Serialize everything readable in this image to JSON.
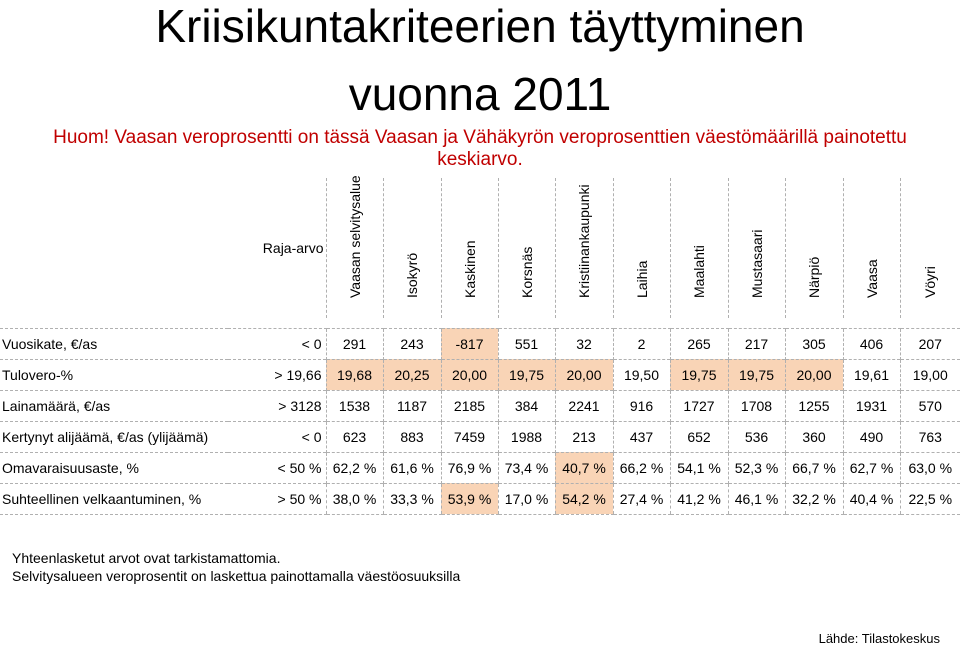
{
  "title_line1": "Kriisikuntakriteerien täyttyminen",
  "title_line2": "vuonna 2011",
  "note": "Huom! Vaasan veroprosentti on tässä Vaasan ja Vähäkyrön veroprosenttien väestömäärillä painotettu keskiarvo.",
  "table": {
    "ref_header": "Raja-arvo",
    "columns": [
      "Vaasan selvitysalue",
      "Isokyrö",
      "Kaskinen",
      "Korsnäs",
      "Kristiinankaupunki",
      "Laihia",
      "Maalahti",
      "Mustasaari",
      "Närpiö",
      "Vaasa",
      "Vöyri"
    ],
    "rows": [
      {
        "label": "Vuosikate, €/as",
        "ref": "< 0",
        "values": [
          "291",
          "243",
          "-817",
          "551",
          "32",
          "2",
          "265",
          "217",
          "305",
          "406",
          "207"
        ],
        "flags": [
          0,
          0,
          1,
          0,
          0,
          0,
          0,
          0,
          0,
          0,
          0
        ]
      },
      {
        "label": "Tulovero-%",
        "ref": "> 19,66",
        "values": [
          "19,68",
          "20,25",
          "20,00",
          "19,75",
          "20,00",
          "19,50",
          "19,75",
          "19,75",
          "20,00",
          "19,61",
          "19,00"
        ],
        "flags": [
          1,
          1,
          1,
          1,
          1,
          0,
          1,
          1,
          1,
          0,
          0
        ]
      },
      {
        "label": "Lainamäärä, €/as",
        "ref": "> 3128",
        "values": [
          "1538",
          "1187",
          "2185",
          "384",
          "2241",
          "916",
          "1727",
          "1708",
          "1255",
          "1931",
          "570"
        ],
        "flags": [
          0,
          0,
          0,
          0,
          0,
          0,
          0,
          0,
          0,
          0,
          0
        ]
      },
      {
        "label": "Kertynyt alijäämä, €/as (ylijäämä)",
        "ref": "< 0",
        "values": [
          "623",
          "883",
          "7459",
          "1988",
          "213",
          "437",
          "652",
          "536",
          "360",
          "490",
          "763"
        ],
        "flags": [
          0,
          0,
          0,
          0,
          0,
          0,
          0,
          0,
          0,
          0,
          0
        ]
      },
      {
        "label": "Omavaraisuusaste, %",
        "ref": "< 50 %",
        "values": [
          "62,2 %",
          "61,6 %",
          "76,9 %",
          "73,4 %",
          "40,7 %",
          "66,2 %",
          "54,1 %",
          "52,3 %",
          "66,7 %",
          "62,7 %",
          "63,0 %"
        ],
        "flags": [
          0,
          0,
          0,
          0,
          1,
          0,
          0,
          0,
          0,
          0,
          0
        ]
      },
      {
        "label": "Suhteellinen velkaantuminen, %",
        "ref": "> 50 %",
        "values": [
          "38,0 %",
          "33,3 %",
          "53,9 %",
          "17,0 %",
          "54,2 %",
          "27,4 %",
          "41,2 %",
          "46,1 %",
          "32,2 %",
          "40,4 %",
          "22,5 %"
        ],
        "flags": [
          0,
          0,
          1,
          0,
          1,
          0,
          0,
          0,
          0,
          0,
          0
        ]
      }
    ]
  },
  "footnote1": "Yhteenlasketut arvot ovat tarkistamattomia.",
  "footnote2": "Selvitysalueen veroprosentit on laskettua painottamalla väestöosuuksilla",
  "source": "Lähde: Tilastokeskus",
  "colors": {
    "highlight": "#f9d4b6",
    "note": "#c00000"
  }
}
